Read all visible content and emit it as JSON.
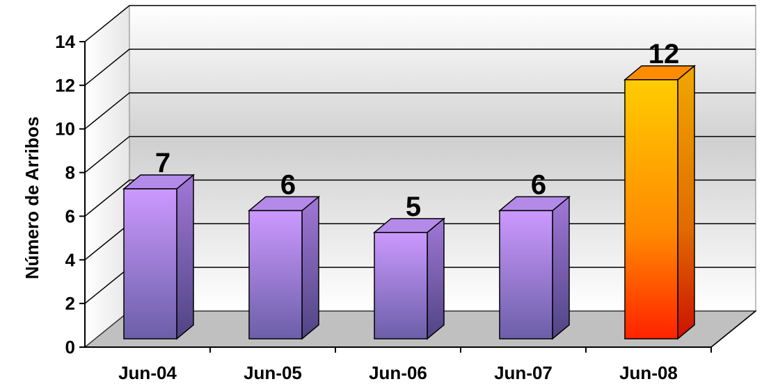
{
  "chart_data": {
    "type": "bar",
    "title": "",
    "xlabel": "",
    "ylabel": "Número de Arribos",
    "categories": [
      "Jun-04",
      "Jun-05",
      "Jun-06",
      "Jun-07",
      "Jun-08"
    ],
    "values": [
      7,
      6,
      5,
      6,
      12
    ],
    "data_labels": [
      "7",
      "6",
      "5",
      "6",
      "12"
    ],
    "ylim": [
      0,
      14
    ],
    "yticks": [
      "0",
      "2",
      "4",
      "6",
      "8",
      "10",
      "12",
      "14"
    ],
    "grid": true,
    "legend": "none",
    "colors": {
      "default_top": "#cc99ff",
      "default_bottom": "#6b5fa8",
      "highlight_top": "#ffcc00",
      "highlight_bottom": "#ff2200",
      "floor": "#c0c0c0"
    }
  }
}
